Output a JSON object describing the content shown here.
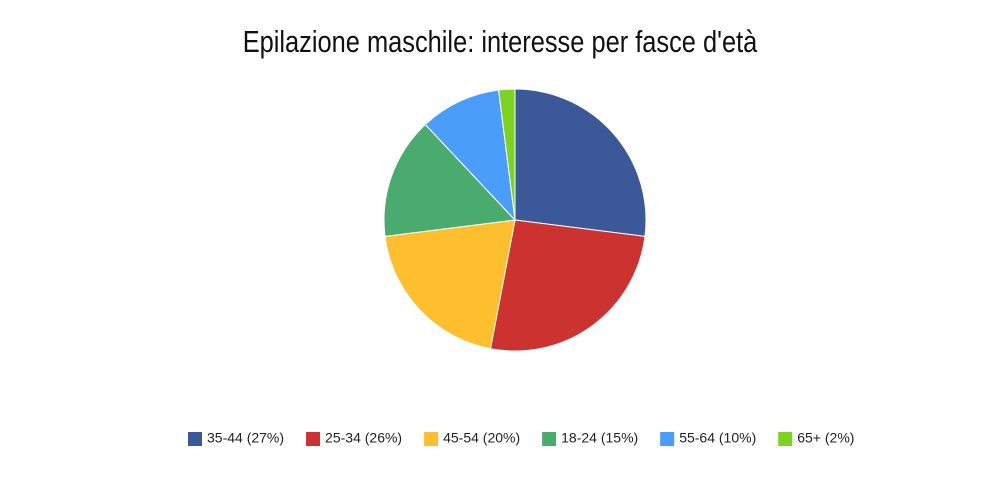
{
  "chart_data": {
    "type": "pie",
    "title": "Epilazione maschile: interesse per fasce d'età",
    "categories": [
      "35-44 (27%)",
      "25-34 (26%)",
      "45-54 (20%)",
      "18-24 (15%)",
      "55-64 (10%)",
      "65+ (2%)"
    ],
    "values": [
      27,
      26,
      20,
      15,
      10,
      2
    ],
    "colors": [
      "#3b5998",
      "#cc3330",
      "#fdbf2d",
      "#4aab6f",
      "#4a9df8",
      "#7ed321"
    ],
    "legend": "bottom"
  }
}
